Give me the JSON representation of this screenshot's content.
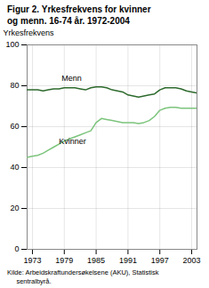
{
  "chart_data": {
    "type": "line",
    "title": "Figur 2. Yrkesfrekvens for kvinner\nog menn. 16-74 år. 1972-2004",
    "y_label": "Yrkesfrekvens",
    "caption": "Kilde: Arbeidskraftundersøkelsene (AKU), Statistisk\n     sentralbyrå.",
    "x": [
      1972,
      1973,
      1974,
      1975,
      1976,
      1977,
      1978,
      1979,
      1980,
      1981,
      1982,
      1983,
      1984,
      1985,
      1986,
      1987,
      1988,
      1989,
      1990,
      1991,
      1992,
      1993,
      1994,
      1995,
      1996,
      1997,
      1998,
      1999,
      2000,
      2001,
      2002,
      2003,
      2004
    ],
    "series": [
      {
        "name": "Menn",
        "color": "#2d6a2d",
        "values": [
          78.0,
          78.0,
          78.0,
          77.5,
          78.0,
          78.5,
          78.5,
          79.0,
          79.0,
          79.0,
          78.5,
          78.0,
          79.0,
          79.5,
          79.5,
          79.0,
          78.0,
          77.5,
          77.0,
          75.5,
          75.0,
          74.5,
          75.0,
          75.5,
          76.0,
          78.0,
          79.0,
          79.0,
          79.0,
          78.5,
          77.5,
          77.0,
          76.5
        ]
      },
      {
        "name": "Kvinner",
        "color": "#7cc47c",
        "values": [
          45.0,
          45.5,
          46.0,
          47.0,
          48.5,
          50.0,
          51.5,
          53.0,
          54.0,
          55.0,
          56.0,
          57.0,
          58.0,
          62.0,
          64.0,
          63.5,
          63.0,
          62.5,
          62.0,
          62.0,
          62.0,
          61.5,
          62.0,
          63.0,
          65.0,
          68.0,
          69.0,
          69.5,
          69.5,
          69.0,
          69.0,
          69.0,
          69.0
        ]
      }
    ],
    "annotations": [
      {
        "text": "Menn",
        "x": 1978.5,
        "y": 82.5
      },
      {
        "text": "Kvinner",
        "x": 1978.0,
        "y": 51.5
      }
    ],
    "xlim": [
      1972,
      2004
    ],
    "xticks": [
      1973,
      1979,
      1985,
      1991,
      1997,
      2003
    ],
    "ylim": [
      0,
      100
    ],
    "yticks": [
      0,
      20,
      40,
      60,
      80,
      100
    ],
    "grid": true
  }
}
